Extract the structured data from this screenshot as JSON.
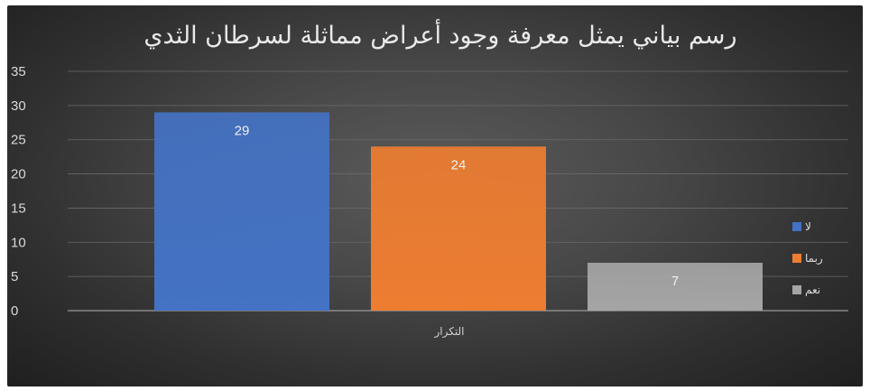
{
  "chart_data": {
    "type": "bar",
    "title": "رسم بياني يمثل معرفة وجود أعراض مماثلة لسرطان الثدي",
    "categories": [
      "التكرار"
    ],
    "series": [
      {
        "name": "لا",
        "values": [
          29
        ],
        "color": "#4472c4"
      },
      {
        "name": "ربما",
        "values": [
          24
        ],
        "color": "#ed7d31"
      },
      {
        "name": "نعم",
        "values": [
          7
        ],
        "color": "#a5a5a5"
      }
    ],
    "ylim": [
      0,
      35
    ],
    "yticks": [
      0,
      5,
      10,
      15,
      20,
      25,
      30,
      35
    ],
    "grid": true,
    "data_labels": true,
    "legend": "right"
  }
}
